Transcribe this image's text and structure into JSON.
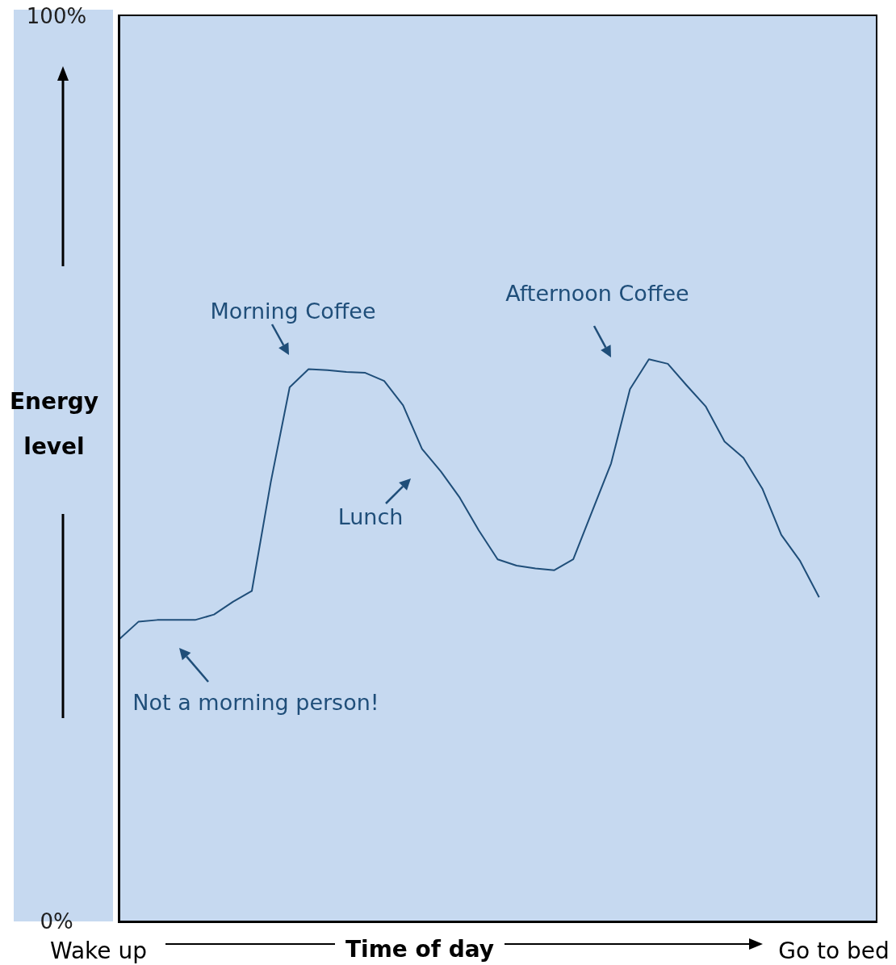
{
  "chart_data": {
    "type": "line",
    "xlabel": "Time of day",
    "ylabel": "Energy level",
    "categories": [
      null,
      null,
      null,
      null,
      null,
      null,
      null,
      null,
      null,
      null,
      null,
      null,
      null,
      null,
      null,
      null,
      null,
      null,
      null,
      null,
      null,
      null,
      null,
      null,
      null,
      null,
      null,
      null,
      null,
      null,
      null,
      null,
      null,
      null,
      null,
      null,
      null,
      null,
      null,
      null,
      null
    ],
    "series": [
      {
        "color": "#1f4e79",
        "values": [
          31.2,
          33.1,
          33.3,
          33.3,
          33.3,
          33.9,
          35.3,
          36.5,
          48.5,
          59.0,
          61.0,
          60.9,
          60.7,
          60.6,
          59.7,
          57.0,
          52.2,
          49.7,
          46.8,
          43.2,
          40.0,
          39.3,
          39.0,
          38.8,
          40.0,
          45.3,
          50.6,
          58.8,
          62.1,
          61.6,
          59.2,
          56.9,
          53.0,
          51.2,
          47.8,
          42.7,
          39.8,
          35.8,
          null,
          null,
          null
        ]
      }
    ],
    "ylim": [
      0,
      100
    ],
    "yticks": [
      {
        "value": 0,
        "label": "0%"
      },
      {
        "value": 100,
        "label": "100%"
      }
    ],
    "annotations": [
      "Morning Coffee",
      "Afternoon Coffee",
      "Lunch",
      "Not a morning person!",
      "Wake up",
      "Go to bed"
    ]
  }
}
